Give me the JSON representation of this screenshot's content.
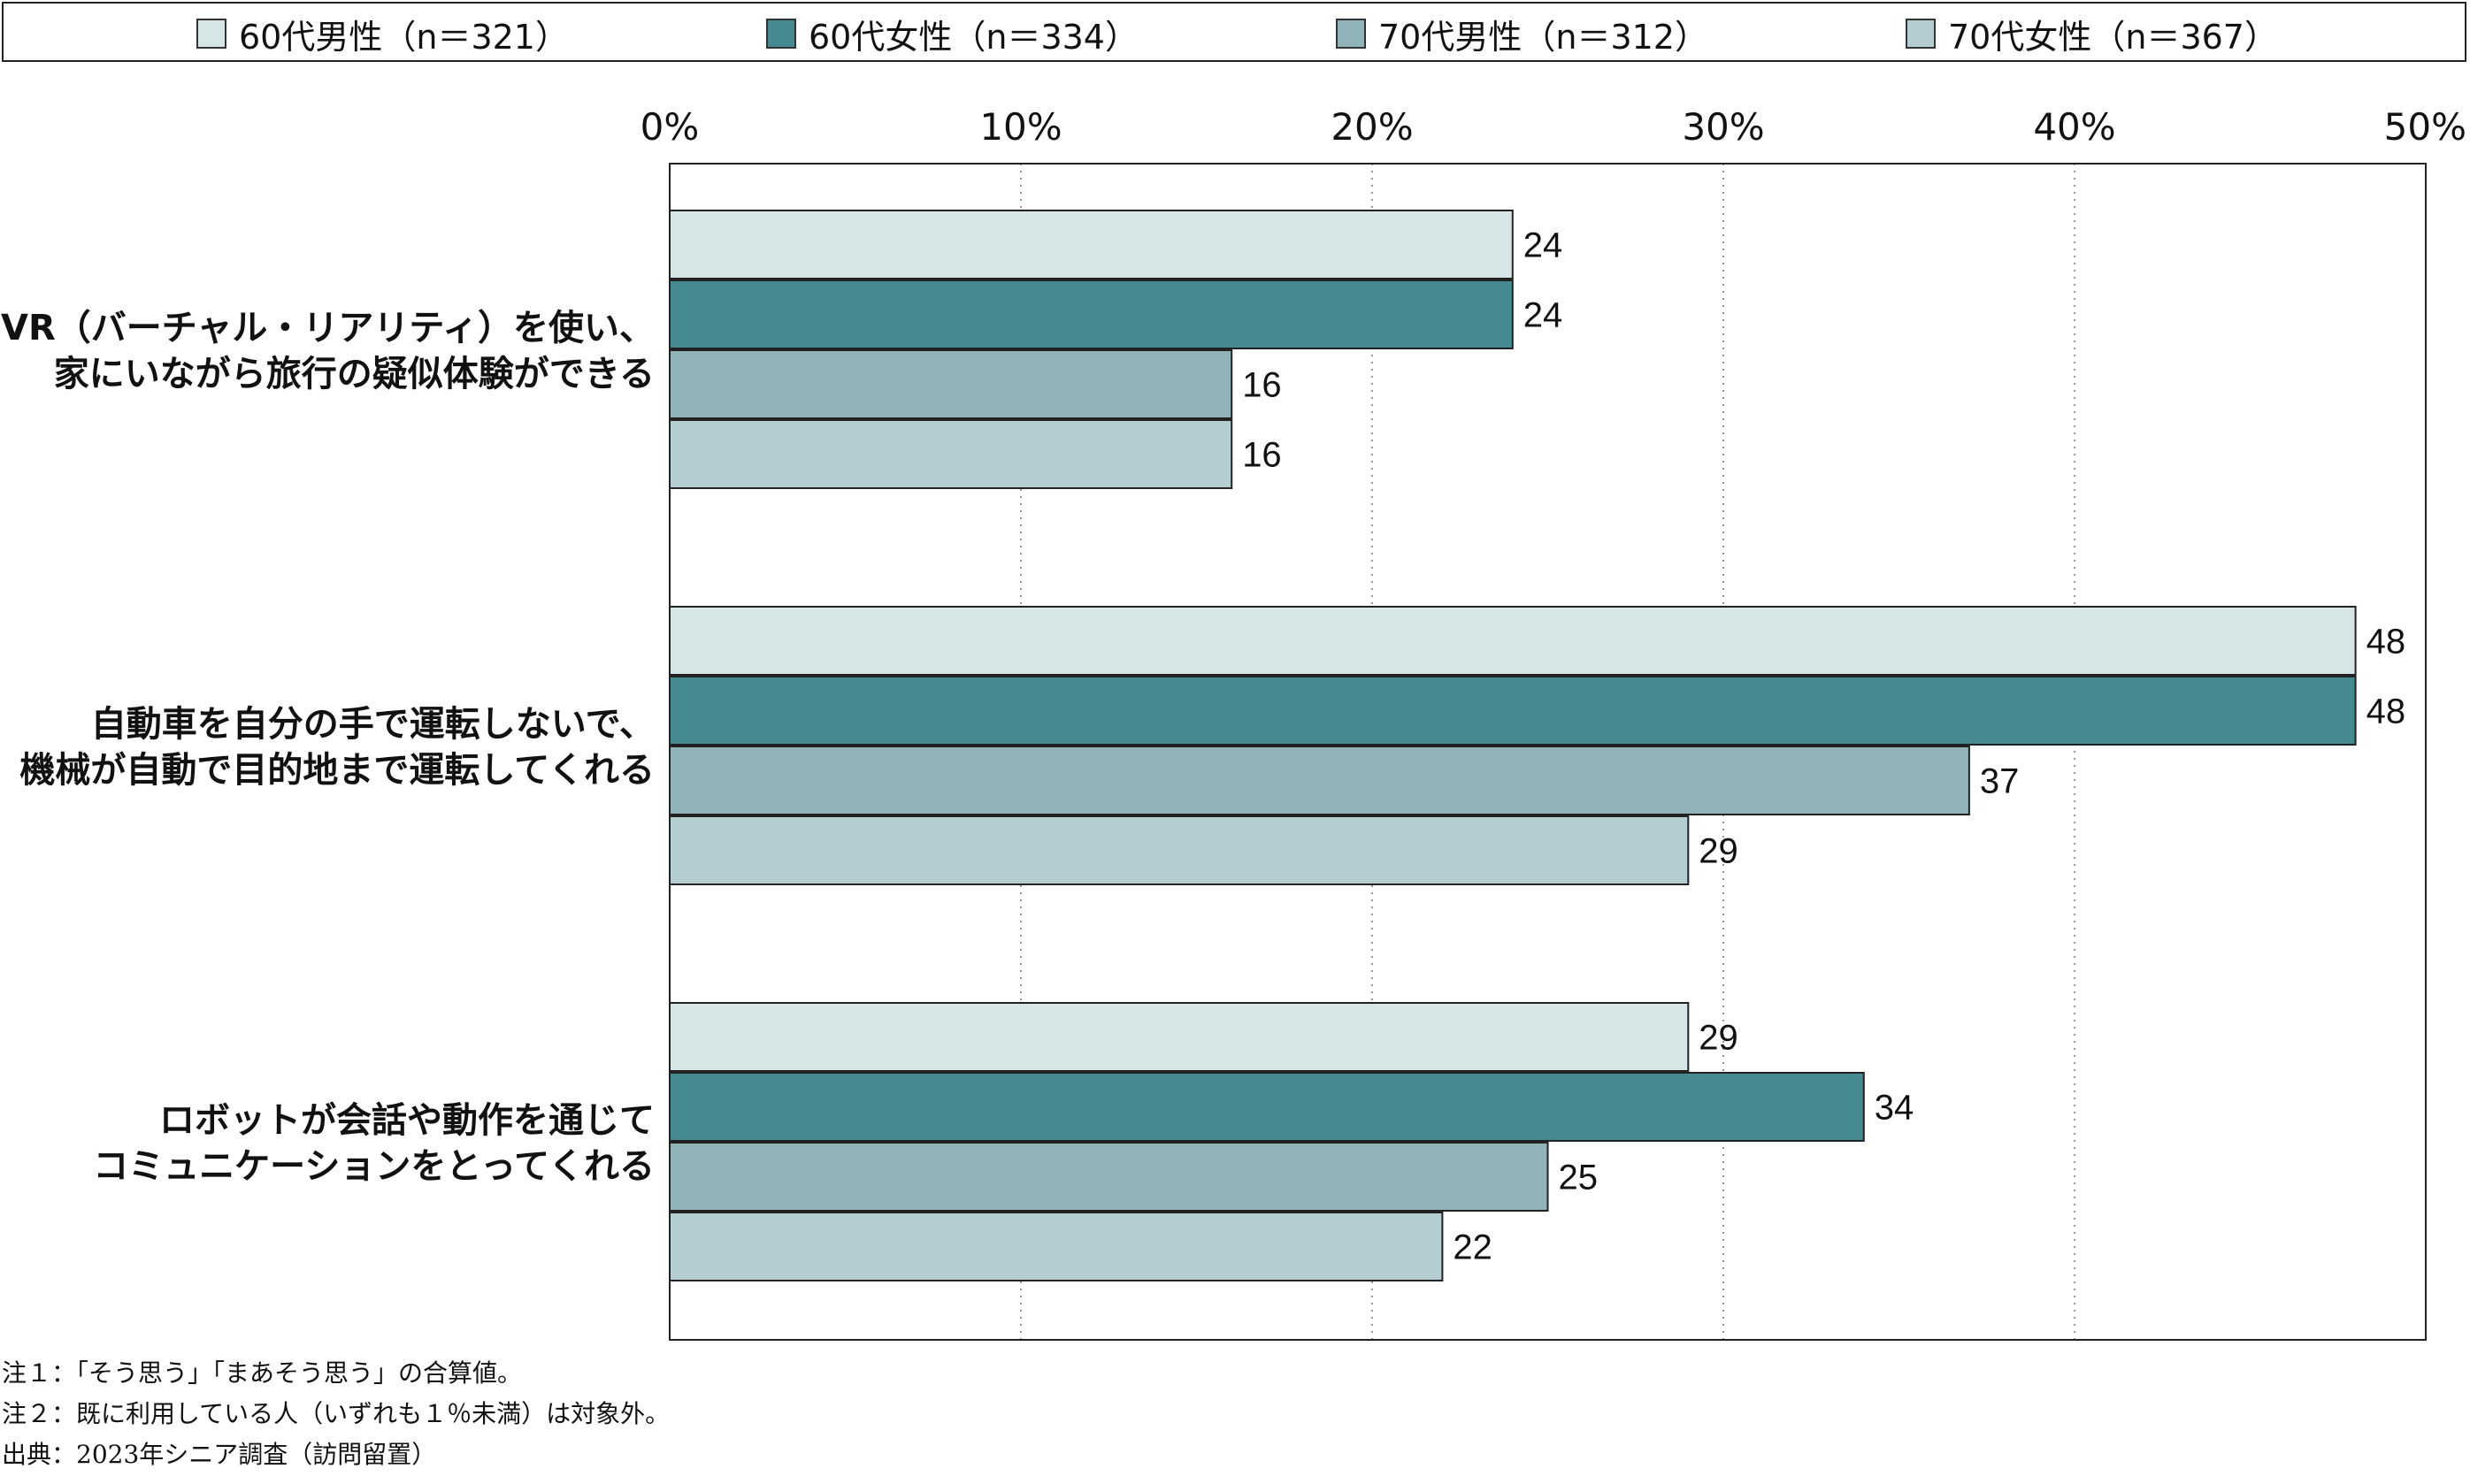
{
  "chart_data": {
    "type": "bar",
    "orientation": "horizontal",
    "categories": [
      [
        "VR（バーチャル・リアリティ）を使い、",
        "家にいながら旅行の疑似体験ができる"
      ],
      [
        "自動車を自分の手で運転しないで、",
        "機械が自動で目的地まで運転してくれる"
      ],
      [
        "ロボットが会話や動作を通じて",
        "コミュニケーションをとってくれる"
      ]
    ],
    "series": [
      {
        "name": "60代男性（n＝321）",
        "color": "#d6e5e6",
        "values": [
          24,
          48,
          29
        ]
      },
      {
        "name": "60代女性（n＝334）",
        "color": "#468a91",
        "values": [
          24,
          48,
          34
        ]
      },
      {
        "name": "70代男性（n＝312）",
        "color": "#8fb3b6",
        "values": [
          16,
          37,
          25
        ]
      },
      {
        "name": "70代女性（n＝367）",
        "color": "#b3cdd0",
        "values": [
          16,
          29,
          22
        ]
      }
    ],
    "xlim": [
      0,
      50
    ],
    "xticks": [
      0,
      10,
      20,
      30,
      40,
      50
    ],
    "xtick_labels": [
      "0%",
      "10%",
      "20%",
      "30%",
      "40%",
      "50%"
    ],
    "grid": true,
    "legend_position": "top"
  },
  "notes": [
    "注１：「そう思う」「まあそう思う」の合算値。",
    "注２：既に利用している人（いずれも１％未満）は対象外。",
    "出典：2023年シニア調査（訪問留置）"
  ]
}
